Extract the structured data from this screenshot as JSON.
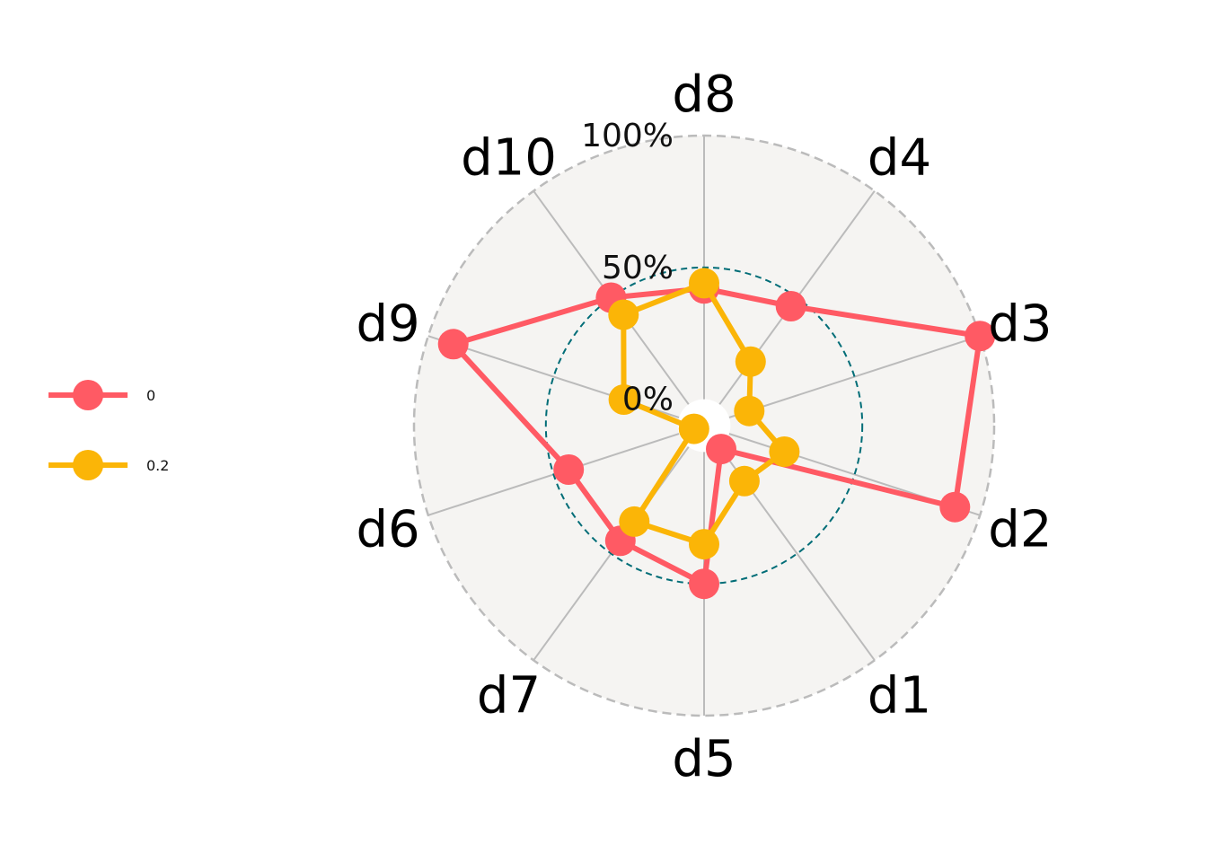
{
  "chart_data": {
    "type": "radar",
    "axes": [
      "d8",
      "d4",
      "d3",
      "d2",
      "d1",
      "d5",
      "d7",
      "d6",
      "d9",
      "d10"
    ],
    "rlim": [
      -0.1,
      1.0
    ],
    "gridlines": [
      {
        "value": 0.0,
        "label": "0%"
      },
      {
        "value": 0.5,
        "label": "50%"
      },
      {
        "value": 1.0,
        "label": "100%"
      }
    ],
    "series": [
      {
        "name": "0",
        "color": "#ff5a64",
        "values": [
          0.42,
          0.46,
          1.0,
          0.9,
          0.01,
          0.5,
          0.44,
          0.44,
          0.9,
          0.5
        ]
      },
      {
        "name": "0.2",
        "color": "#fbb507",
        "values": [
          0.44,
          0.2,
          0.08,
          0.22,
          0.16,
          0.35,
          0.35,
          -0.06,
          0.22,
          0.42
        ]
      }
    ],
    "legend_position": "left",
    "colors": {
      "plot_background": "#f5f4f2",
      "spokes": "#bbbbbb",
      "outer_ring": "#bbbbbb",
      "mid_ring": "#006d77"
    }
  }
}
